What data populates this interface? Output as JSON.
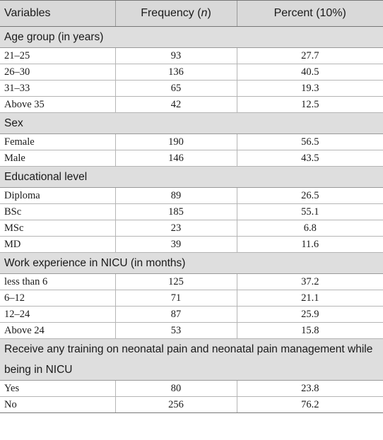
{
  "header": {
    "col1": "Variables",
    "col2_prefix": "Frequency (",
    "col2_italic": "n",
    "col2_suffix": ")",
    "col3": "Percent (10%)"
  },
  "sections": [
    {
      "title": "Age group (in years)",
      "rows": [
        {
          "label": "21–25",
          "frequency": "93",
          "percent": "27.7"
        },
        {
          "label": "26–30",
          "frequency": "136",
          "percent": "40.5"
        },
        {
          "label": "31–33",
          "frequency": "65",
          "percent": "19.3"
        },
        {
          "label": "Above 35",
          "frequency": "42",
          "percent": "12.5"
        }
      ]
    },
    {
      "title": "Sex",
      "rows": [
        {
          "label": "Female",
          "frequency": "190",
          "percent": "56.5"
        },
        {
          "label": "Male",
          "frequency": "146",
          "percent": "43.5"
        }
      ]
    },
    {
      "title": "Educational level",
      "rows": [
        {
          "label": "Diploma",
          "frequency": "89",
          "percent": "26.5"
        },
        {
          "label": "BSc",
          "frequency": "185",
          "percent": "55.1"
        },
        {
          "label": "MSc",
          "frequency": "23",
          "percent": "6.8"
        },
        {
          "label": "MD",
          "frequency": "39",
          "percent": "11.6"
        }
      ]
    },
    {
      "title": "Work experience in NICU (in months)",
      "rows": [
        {
          "label": "less than 6",
          "frequency": "125",
          "percent": "37.2"
        },
        {
          "label": "6–12",
          "frequency": "71",
          "percent": "21.1"
        },
        {
          "label": "12–24",
          "frequency": "87",
          "percent": "25.9"
        },
        {
          "label": "Above 24",
          "frequency": "53",
          "percent": "15.8"
        }
      ]
    },
    {
      "title": "Receive any training on neonatal pain and neonatal pain management while being in NICU",
      "tall": true,
      "rows": [
        {
          "label": "Yes",
          "frequency": "80",
          "percent": "23.8"
        },
        {
          "label": "No",
          "frequency": "256",
          "percent": "76.2"
        }
      ]
    }
  ]
}
